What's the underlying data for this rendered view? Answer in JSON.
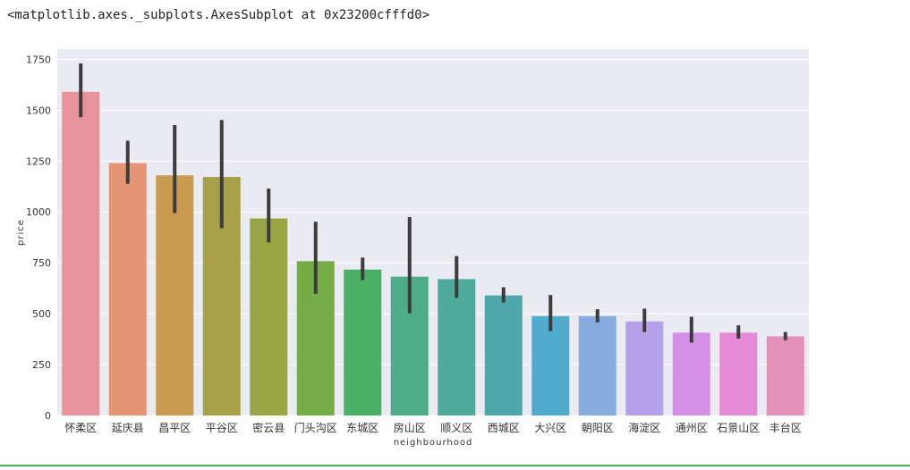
{
  "output": {
    "repr_text": "<matplotlib.axes._subplots.AxesSubplot at 0x23200cfffd0>"
  },
  "chart_data": {
    "type": "bar",
    "xlabel": "neighbourhood",
    "ylabel": "price",
    "ylim": [
      0,
      1800
    ],
    "yticks": [
      0,
      250,
      500,
      750,
      1000,
      1250,
      1500,
      1750
    ],
    "grid": true,
    "background": "#eaeaf2",
    "categories": [
      "怀柔区",
      "延庆县",
      "昌平区",
      "平谷区",
      "密云县",
      "门头沟区",
      "东城区",
      "房山区",
      "顺义区",
      "西城区",
      "大兴区",
      "朝阳区",
      "海淀区",
      "通州区",
      "石景山区",
      "丰台区"
    ],
    "values": [
      1590,
      1240,
      1180,
      1172,
      968,
      758,
      717,
      682,
      670,
      590,
      488,
      488,
      462,
      407,
      407,
      389
    ],
    "error_low": [
      1465,
      1138,
      995,
      920,
      850,
      598,
      665,
      502,
      578,
      555,
      415,
      458,
      410,
      358,
      378,
      370
    ],
    "error_high": [
      1730,
      1350,
      1427,
      1452,
      1115,
      952,
      776,
      975,
      783,
      630,
      592,
      522,
      525,
      485,
      443,
      410
    ],
    "colors": [
      "#e8929c",
      "#e59573",
      "#c99a4f",
      "#a89f49",
      "#99a444",
      "#75ac45",
      "#4ab066",
      "#4dad89",
      "#4eab9c",
      "#4ea8aa",
      "#50abcf",
      "#86acdf",
      "#b5a1ea",
      "#d48ee6",
      "#e58bd6",
      "#e68fb8"
    ]
  }
}
